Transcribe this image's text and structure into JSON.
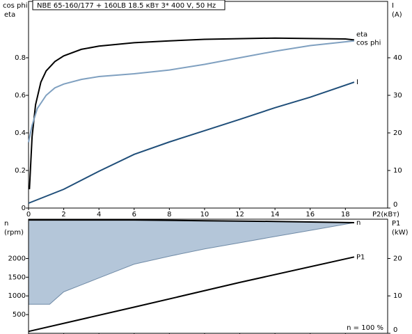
{
  "chart_data": [
    {
      "type": "line",
      "title": "NBE 65-160/177 + 160LB   18.5 кВт   3* 400 V, 50 Hz",
      "ylabel_lines": [
        "cos phi",
        "eta"
      ],
      "y2label_lines": [
        "I",
        "(A)"
      ],
      "xlabel": "P2(кВт)",
      "xlim": [
        0,
        20.4
      ],
      "xticks": [
        0,
        2,
        4,
        6,
        8,
        10,
        12,
        14,
        16,
        18
      ],
      "ylim": [
        0,
        1.1
      ],
      "yticks": [
        0,
        0.2,
        0.4,
        0.6,
        0.8
      ],
      "y2lim": [
        0,
        55
      ],
      "y2ticks": [
        0,
        10,
        20,
        30,
        40
      ],
      "series": [
        {
          "name": "eta",
          "color": "#000000",
          "x": [
            0.05,
            0.2,
            0.4,
            0.7,
            1,
            1.5,
            2,
            3,
            4,
            6,
            8,
            10,
            14,
            18,
            18.5
          ],
          "values": [
            0.1,
            0.38,
            0.55,
            0.67,
            0.73,
            0.78,
            0.81,
            0.845,
            0.862,
            0.88,
            0.89,
            0.898,
            0.905,
            0.9,
            0.895
          ]
        },
        {
          "name": "cos phi",
          "color": "#7fa0c0",
          "x": [
            0,
            0.2,
            0.5,
            1,
            1.5,
            2,
            3,
            4,
            6,
            8,
            10,
            12,
            14,
            16,
            18.5
          ],
          "values": [
            0.35,
            0.44,
            0.53,
            0.6,
            0.64,
            0.66,
            0.685,
            0.7,
            0.715,
            0.735,
            0.765,
            0.8,
            0.835,
            0.865,
            0.89
          ]
        },
        {
          "name": "I",
          "color": "#1f4e79",
          "axis": "y2",
          "x": [
            0,
            2,
            4,
            6,
            8,
            10,
            12,
            14,
            16,
            18.5
          ],
          "values": [
            1.3,
            5,
            9.8,
            14.3,
            17.6,
            20.6,
            23.6,
            26.7,
            29.5,
            33.5
          ]
        }
      ]
    },
    {
      "type": "line",
      "ylabel_lines": [
        "n",
        "(rpm)"
      ],
      "y2label_lines": [
        "P1",
        "(kW)"
      ],
      "note": "n  =  100 %",
      "xlim": [
        0,
        20.4
      ],
      "ylim": [
        0,
        3050
      ],
      "yticks": [
        500,
        1000,
        1500,
        2000
      ],
      "y2lim": [
        0,
        30.5
      ],
      "y2ticks": [
        0,
        10,
        20
      ],
      "fill": "#b4c6d9",
      "series": [
        {
          "name": "n",
          "color": "#000000",
          "x": [
            0,
            1.2,
            2,
            3,
            4,
            6,
            8,
            10,
            12,
            14,
            16,
            18.5
          ],
          "values": [
            3030,
            3030,
            3030,
            3030,
            3030,
            3030,
            3020,
            3010,
            3000,
            2990,
            2975,
            2957
          ],
          "low": [
            776,
            776,
            1109,
            1294,
            1480,
            1848,
            2060,
            2255,
            2420,
            2588,
            2750,
            2957
          ]
        },
        {
          "name": "P1",
          "color": "#000000",
          "axis": "y2",
          "x": [
            0,
            6,
            12,
            18.5
          ],
          "values": [
            0.5,
            7,
            13.6,
            20.4
          ]
        }
      ]
    }
  ]
}
